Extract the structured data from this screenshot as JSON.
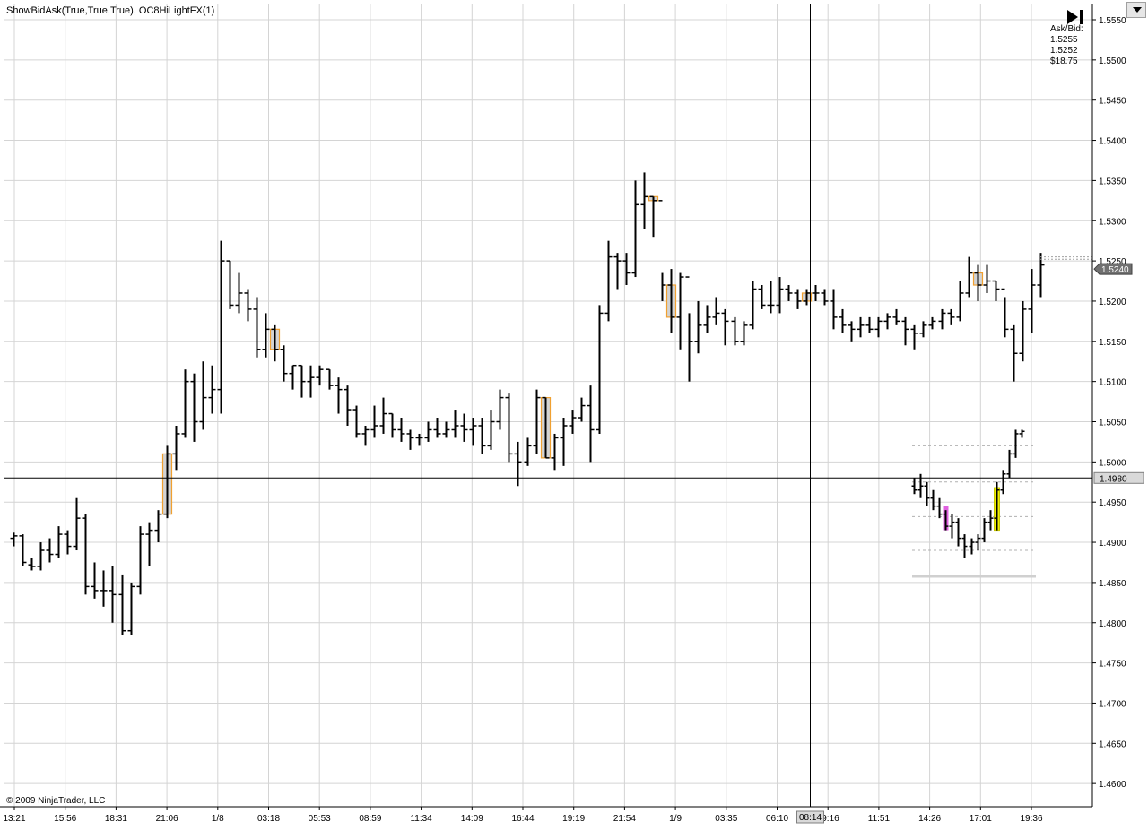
{
  "indicator_title": "ShowBidAsk(True,True,True), OC8HiLightFX(1)",
  "copyright": "© 2009 NinjaTrader, LLC",
  "ask_bid": {
    "label": "Ask/Bid:",
    "ask": "1.5255",
    "bid": "1.5252",
    "value": "$18.75"
  },
  "last_price_label": "1.5240",
  "crosshair_price_label": "1.4980",
  "crosshair_time_label": "08:14",
  "icons": {
    "play": "play-to-end-icon",
    "dropdown": "chevron-down-icon"
  },
  "colors": {
    "bar": "#000000",
    "grid": "#d4d4d4",
    "highlight_fill": "#d3d3d3",
    "highlight_border": "#f0a030",
    "magenta": "#e060e0",
    "yellow": "#f0f000"
  },
  "chart_data": {
    "type": "ohlc",
    "ylim": [
      1.4575,
      1.5575
    ],
    "y_ticks": [
      "1.5550",
      "1.5500",
      "1.5450",
      "1.5400",
      "1.5350",
      "1.5300",
      "1.5250",
      "1.5200",
      "1.5150",
      "1.5100",
      "1.5050",
      "1.5000",
      "1.4950",
      "1.4900",
      "1.4850",
      "1.4800",
      "1.4750",
      "1.4700",
      "1.4650",
      "1.4600"
    ],
    "x_ticks": [
      "13:21",
      "15:56",
      "18:31",
      "21:06",
      "1/8",
      "03:18",
      "05:53",
      "08:59",
      "11:34",
      "14:09",
      "16:44",
      "19:19",
      "21:54",
      "1/9",
      "03:35",
      "06:10",
      "09:16",
      "11:51",
      "14:26",
      "17:01",
      "19:36"
    ],
    "crosshair": {
      "price": 1.498,
      "time": "08:14"
    },
    "bars": [
      [
        1.4905,
        1.4912,
        1.4895,
        1.4908
      ],
      [
        1.4908,
        1.491,
        1.487,
        1.4875
      ],
      [
        1.4872,
        1.488,
        1.4865,
        1.487
      ],
      [
        1.487,
        1.49,
        1.4865,
        1.489
      ],
      [
        1.489,
        1.4905,
        1.4875,
        1.4885
      ],
      [
        1.4885,
        1.492,
        1.488,
        1.491
      ],
      [
        1.491,
        1.4915,
        1.4885,
        1.4895
      ],
      [
        1.4895,
        1.4955,
        1.489,
        1.493
      ],
      [
        1.493,
        1.4935,
        1.4835,
        1.4845
      ],
      [
        1.4845,
        1.4875,
        1.483,
        1.484
      ],
      [
        1.484,
        1.4865,
        1.482,
        1.484
      ],
      [
        1.484,
        1.487,
        1.48,
        1.4835
      ],
      [
        1.4835,
        1.486,
        1.4785,
        1.479
      ],
      [
        1.479,
        1.485,
        1.4785,
        1.4845
      ],
      [
        1.4845,
        1.492,
        1.4835,
        1.491
      ],
      [
        1.491,
        1.4925,
        1.487,
        1.4915
      ],
      [
        1.4915,
        1.494,
        1.49,
        1.4935
      ],
      [
        1.4935,
        1.502,
        1.493,
        1.501
      ],
      [
        1.501,
        1.5045,
        1.499,
        1.5035
      ],
      [
        1.5035,
        1.5115,
        1.503,
        1.51
      ],
      [
        1.51,
        1.511,
        1.5025,
        1.505
      ],
      [
        1.505,
        1.5125,
        1.504,
        1.508
      ],
      [
        1.508,
        1.512,
        1.506,
        1.509
      ],
      [
        1.509,
        1.5275,
        1.506,
        1.525
      ],
      [
        1.525,
        1.525,
        1.519,
        1.5195
      ],
      [
        1.5195,
        1.5235,
        1.5185,
        1.521
      ],
      [
        1.521,
        1.5215,
        1.5175,
        1.519
      ],
      [
        1.519,
        1.5205,
        1.513,
        1.514
      ],
      [
        1.514,
        1.5185,
        1.513,
        1.5165
      ],
      [
        1.5165,
        1.517,
        1.5125,
        1.514
      ],
      [
        1.514,
        1.5145,
        1.51,
        1.511
      ],
      [
        1.511,
        1.512,
        1.509,
        1.512
      ],
      [
        1.512,
        1.512,
        1.508,
        1.51
      ],
      [
        1.51,
        1.512,
        1.508,
        1.5105
      ],
      [
        1.5105,
        1.512,
        1.5095,
        1.5115
      ],
      [
        1.5115,
        1.5115,
        1.509,
        1.5095
      ],
      [
        1.5095,
        1.5105,
        1.506,
        1.509
      ],
      [
        1.509,
        1.5095,
        1.5045,
        1.5065
      ],
      [
        1.5065,
        1.507,
        1.503,
        1.5035
      ],
      [
        1.5035,
        1.5045,
        1.502,
        1.504
      ],
      [
        1.504,
        1.507,
        1.503,
        1.5045
      ],
      [
        1.5045,
        1.508,
        1.5035,
        1.506
      ],
      [
        1.506,
        1.506,
        1.503,
        1.504
      ],
      [
        1.504,
        1.5055,
        1.5025,
        1.5035
      ],
      [
        1.5035,
        1.504,
        1.5015,
        1.503
      ],
      [
        1.503,
        1.5035,
        1.502,
        1.503
      ],
      [
        1.503,
        1.505,
        1.5025,
        1.504
      ],
      [
        1.504,
        1.5055,
        1.503,
        1.5035
      ],
      [
        1.5035,
        1.505,
        1.503,
        1.504
      ],
      [
        1.504,
        1.5065,
        1.503,
        1.5045
      ],
      [
        1.5045,
        1.506,
        1.5025,
        1.504
      ],
      [
        1.504,
        1.5055,
        1.502,
        1.5045
      ],
      [
        1.5045,
        1.5055,
        1.501,
        1.502
      ],
      [
        1.502,
        1.5065,
        1.5015,
        1.505
      ],
      [
        1.505,
        1.509,
        1.504,
        1.508
      ],
      [
        1.508,
        1.5085,
        1.5,
        1.501
      ],
      [
        1.501,
        1.5025,
        1.497,
        1.5
      ],
      [
        1.5,
        1.503,
        1.4995,
        1.502
      ],
      [
        1.502,
        1.509,
        1.501,
        1.508
      ],
      [
        1.508,
        1.508,
        1.5005,
        1.5005
      ],
      [
        1.5005,
        1.5035,
        1.499,
        1.503
      ],
      [
        1.503,
        1.5055,
        1.4995,
        1.5045
      ],
      [
        1.5045,
        1.5065,
        1.5035,
        1.5055
      ],
      [
        1.5055,
        1.508,
        1.505,
        1.507
      ],
      [
        1.507,
        1.5095,
        1.5,
        1.504
      ],
      [
        1.504,
        1.5195,
        1.5035,
        1.5185
      ],
      [
        1.5185,
        1.5275,
        1.5175,
        1.5255
      ],
      [
        1.5255,
        1.526,
        1.5215,
        1.525
      ],
      [
        1.525,
        1.526,
        1.522,
        1.5235
      ],
      [
        1.5235,
        1.535,
        1.523,
        1.532
      ],
      [
        1.532,
        1.536,
        1.529,
        1.533
      ],
      [
        1.533,
        1.533,
        1.528,
        1.5325
      ],
      [
        1.5325,
        1.5235,
        1.52,
        1.522
      ],
      [
        1.522,
        1.524,
        1.516,
        1.518
      ],
      [
        1.518,
        1.5235,
        1.514,
        1.523
      ],
      [
        1.523,
        1.5185,
        1.51,
        1.515
      ],
      [
        1.515,
        1.52,
        1.5135,
        1.517
      ],
      [
        1.517,
        1.5195,
        1.516,
        1.518
      ],
      [
        1.518,
        1.5205,
        1.517,
        1.5185
      ],
      [
        1.5185,
        1.519,
        1.5145,
        1.5175
      ],
      [
        1.5175,
        1.518,
        1.5145,
        1.515
      ],
      [
        1.515,
        1.5175,
        1.5145,
        1.517
      ],
      [
        1.517,
        1.5225,
        1.5165,
        1.5215
      ],
      [
        1.5215,
        1.522,
        1.519,
        1.5195
      ],
      [
        1.5195,
        1.5225,
        1.5185,
        1.5195
      ],
      [
        1.5195,
        1.523,
        1.5185,
        1.5215
      ],
      [
        1.5215,
        1.522,
        1.52,
        1.521
      ],
      [
        1.521,
        1.5215,
        1.519,
        1.52
      ],
      [
        1.52,
        1.5215,
        1.5195,
        1.521
      ],
      [
        1.521,
        1.522,
        1.52,
        1.521
      ],
      [
        1.521,
        1.5215,
        1.5195,
        1.52
      ],
      [
        1.52,
        1.5215,
        1.5165,
        1.518
      ],
      [
        1.518,
        1.519,
        1.516,
        1.517
      ],
      [
        1.517,
        1.5175,
        1.515,
        1.5165
      ],
      [
        1.5165,
        1.518,
        1.5155,
        1.517
      ],
      [
        1.517,
        1.518,
        1.516,
        1.5165
      ],
      [
        1.5165,
        1.518,
        1.5155,
        1.5175
      ],
      [
        1.5175,
        1.5185,
        1.5165,
        1.518
      ],
      [
        1.518,
        1.519,
        1.517,
        1.5175
      ],
      [
        1.5175,
        1.518,
        1.5145,
        1.5165
      ],
      [
        1.5165,
        1.517,
        1.514,
        1.516
      ],
      [
        1.516,
        1.5175,
        1.5155,
        1.517
      ],
      [
        1.517,
        1.518,
        1.5165,
        1.5175
      ],
      [
        1.5175,
        1.519,
        1.5165,
        1.5185
      ],
      [
        1.5185,
        1.519,
        1.517,
        1.518
      ],
      [
        1.518,
        1.5225,
        1.5175,
        1.521
      ],
      [
        1.521,
        1.5255,
        1.5205,
        1.5235
      ],
      [
        1.5235,
        1.5245,
        1.52,
        1.522
      ],
      [
        1.522,
        1.5245,
        1.521,
        1.5225
      ],
      [
        1.5225,
        1.5225,
        1.52,
        1.5215
      ],
      [
        1.5215,
        1.5205,
        1.5155,
        1.5165
      ],
      [
        1.5165,
        1.517,
        1.51,
        1.5135
      ],
      [
        1.5135,
        1.52,
        1.5125,
        1.519
      ],
      [
        1.519,
        1.524,
        1.516,
        1.522
      ],
      [
        1.522,
        1.526,
        1.5205,
        1.5245
      ]
    ],
    "inset_bars": [
      [
        1.497,
        1.498,
        1.496,
        1.4965
      ],
      [
        1.4965,
        1.4985,
        1.4955,
        1.497
      ],
      [
        1.497,
        1.4975,
        1.4945,
        1.4955
      ],
      [
        1.4955,
        1.4965,
        1.494,
        1.4945
      ],
      [
        1.4945,
        1.4955,
        1.493,
        1.4935
      ],
      [
        1.4935,
        1.494,
        1.4915,
        1.492
      ],
      [
        1.492,
        1.4935,
        1.4905,
        1.4925
      ],
      [
        1.4925,
        1.493,
        1.4895,
        1.4905
      ],
      [
        1.4905,
        1.491,
        1.488,
        1.4895
      ],
      [
        1.4895,
        1.4905,
        1.4885,
        1.49
      ],
      [
        1.49,
        1.491,
        1.489,
        1.4905
      ],
      [
        1.4905,
        1.493,
        1.49,
        1.4925
      ],
      [
        1.4925,
        1.494,
        1.4915,
        1.493
      ],
      [
        1.493,
        1.4975,
        1.4915,
        1.4965
      ],
      [
        1.4965,
        1.499,
        1.496,
        1.4985
      ],
      [
        1.4985,
        1.5015,
        1.498,
        1.501
      ],
      [
        1.501,
        1.504,
        1.5005,
        1.5035
      ],
      [
        1.5035,
        1.504,
        1.503,
        1.5038
      ]
    ]
  }
}
